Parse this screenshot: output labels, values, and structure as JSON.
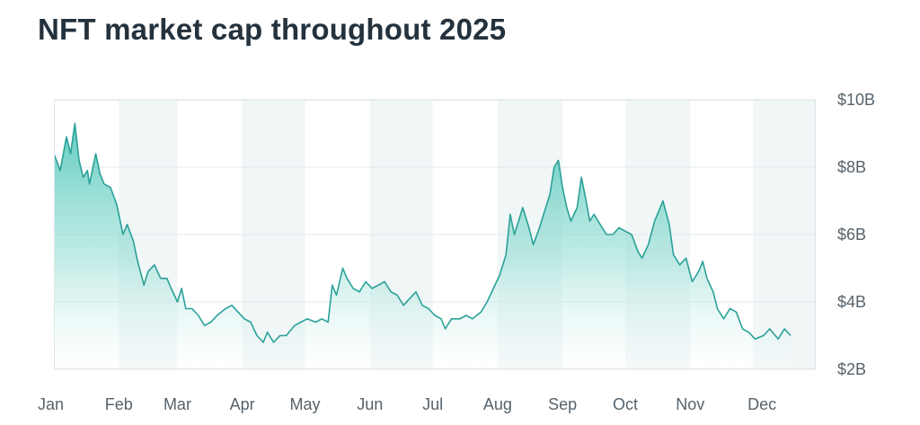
{
  "chart_data": {
    "type": "area",
    "title": "NFT market cap throughout 2025",
    "xlabel": "",
    "ylabel": "",
    "x_ticks": [
      "Jan",
      "Feb",
      "Mar",
      "Apr",
      "May",
      "Jun",
      "Jul",
      "Aug",
      "Sep",
      "Oct",
      "Nov",
      "Dec"
    ],
    "y_ticks": [
      "$2B",
      "$4B",
      "$6B",
      "$8B",
      "$10B"
    ],
    "y_tick_values": [
      2,
      4,
      6,
      8,
      10
    ],
    "ylim": [
      2,
      10
    ],
    "x_range": [
      "2025-01-01",
      "2025-12-31"
    ],
    "y_axis_position": "right",
    "grid": true,
    "alternating_month_bands": true,
    "colors": {
      "line": "#2aa198",
      "fill_top": "#4cc5b8",
      "fill_bottom": "#ffffff",
      "band": "#f1f6f7"
    },
    "series": [
      {
        "values": [
          [
            "2025-01-01",
            8.4
          ],
          [
            "2025-01-04",
            7.9
          ],
          [
            "2025-01-07",
            8.9
          ],
          [
            "2025-01-09",
            8.4
          ],
          [
            "2025-01-11",
            9.3
          ],
          [
            "2025-01-13",
            8.2
          ],
          [
            "2025-01-15",
            7.7
          ],
          [
            "2025-01-17",
            7.9
          ],
          [
            "2025-01-18",
            7.5
          ],
          [
            "2025-01-21",
            8.4
          ],
          [
            "2025-01-23",
            7.8
          ],
          [
            "2025-01-25",
            7.5
          ],
          [
            "2025-01-28",
            7.4
          ],
          [
            "2025-01-31",
            6.9
          ],
          [
            "2025-02-03",
            6.0
          ],
          [
            "2025-02-05",
            6.3
          ],
          [
            "2025-02-08",
            5.8
          ],
          [
            "2025-02-10",
            5.2
          ],
          [
            "2025-02-13",
            4.5
          ],
          [
            "2025-02-15",
            4.9
          ],
          [
            "2025-02-18",
            5.1
          ],
          [
            "2025-02-21",
            4.7
          ],
          [
            "2025-02-24",
            4.7
          ],
          [
            "2025-02-26",
            4.4
          ],
          [
            "2025-03-01",
            4.0
          ],
          [
            "2025-03-03",
            4.4
          ],
          [
            "2025-03-05",
            3.8
          ],
          [
            "2025-03-08",
            3.8
          ],
          [
            "2025-03-11",
            3.6
          ],
          [
            "2025-03-14",
            3.3
          ],
          [
            "2025-03-17",
            3.4
          ],
          [
            "2025-03-20",
            3.6
          ],
          [
            "2025-03-24",
            3.8
          ],
          [
            "2025-03-27",
            3.9
          ],
          [
            "2025-03-30",
            3.7
          ],
          [
            "2025-04-02",
            3.5
          ],
          [
            "2025-04-05",
            3.4
          ],
          [
            "2025-04-08",
            3.0
          ],
          [
            "2025-04-11",
            2.8
          ],
          [
            "2025-04-13",
            3.1
          ],
          [
            "2025-04-16",
            2.8
          ],
          [
            "2025-04-19",
            3.0
          ],
          [
            "2025-04-22",
            3.0
          ],
          [
            "2025-04-26",
            3.3
          ],
          [
            "2025-04-29",
            3.4
          ],
          [
            "2025-05-02",
            3.5
          ],
          [
            "2025-05-06",
            3.4
          ],
          [
            "2025-05-09",
            3.5
          ],
          [
            "2025-05-12",
            3.4
          ],
          [
            "2025-05-14",
            4.5
          ],
          [
            "2025-05-16",
            4.2
          ],
          [
            "2025-05-19",
            5.0
          ],
          [
            "2025-05-21",
            4.7
          ],
          [
            "2025-05-24",
            4.4
          ],
          [
            "2025-05-27",
            4.3
          ],
          [
            "2025-05-30",
            4.6
          ],
          [
            "2025-06-02",
            4.4
          ],
          [
            "2025-06-05",
            4.5
          ],
          [
            "2025-06-08",
            4.6
          ],
          [
            "2025-06-11",
            4.3
          ],
          [
            "2025-06-14",
            4.2
          ],
          [
            "2025-06-17",
            3.9
          ],
          [
            "2025-06-20",
            4.1
          ],
          [
            "2025-06-23",
            4.3
          ],
          [
            "2025-06-26",
            3.9
          ],
          [
            "2025-06-29",
            3.8
          ],
          [
            "2025-07-02",
            3.6
          ],
          [
            "2025-07-05",
            3.5
          ],
          [
            "2025-07-07",
            3.2
          ],
          [
            "2025-07-10",
            3.5
          ],
          [
            "2025-07-14",
            3.5
          ],
          [
            "2025-07-17",
            3.6
          ],
          [
            "2025-07-20",
            3.5
          ],
          [
            "2025-07-24",
            3.7
          ],
          [
            "2025-07-27",
            4.0
          ],
          [
            "2025-07-30",
            4.4
          ],
          [
            "2025-08-02",
            4.8
          ],
          [
            "2025-08-05",
            5.4
          ],
          [
            "2025-08-07",
            6.6
          ],
          [
            "2025-08-09",
            6.0
          ],
          [
            "2025-08-11",
            6.4
          ],
          [
            "2025-08-13",
            6.8
          ],
          [
            "2025-08-16",
            6.2
          ],
          [
            "2025-08-18",
            5.7
          ],
          [
            "2025-08-21",
            6.2
          ],
          [
            "2025-08-23",
            6.6
          ],
          [
            "2025-08-26",
            7.2
          ],
          [
            "2025-08-28",
            8.0
          ],
          [
            "2025-08-30",
            8.2
          ],
          [
            "2025-09-01",
            7.4
          ],
          [
            "2025-09-03",
            6.8
          ],
          [
            "2025-09-05",
            6.4
          ],
          [
            "2025-09-08",
            6.8
          ],
          [
            "2025-09-10",
            7.7
          ],
          [
            "2025-09-12",
            7.1
          ],
          [
            "2025-09-14",
            6.4
          ],
          [
            "2025-09-16",
            6.6
          ],
          [
            "2025-09-19",
            6.3
          ],
          [
            "2025-09-22",
            6.0
          ],
          [
            "2025-09-25",
            6.0
          ],
          [
            "2025-09-28",
            6.2
          ],
          [
            "2025-10-01",
            6.1
          ],
          [
            "2025-10-04",
            6.0
          ],
          [
            "2025-10-07",
            5.5
          ],
          [
            "2025-10-09",
            5.3
          ],
          [
            "2025-10-12",
            5.7
          ],
          [
            "2025-10-15",
            6.4
          ],
          [
            "2025-10-17",
            6.7
          ],
          [
            "2025-10-19",
            7.0
          ],
          [
            "2025-10-22",
            6.3
          ],
          [
            "2025-10-24",
            5.4
          ],
          [
            "2025-10-27",
            5.1
          ],
          [
            "2025-10-30",
            5.3
          ],
          [
            "2025-11-02",
            4.6
          ],
          [
            "2025-11-05",
            4.9
          ],
          [
            "2025-11-07",
            5.2
          ],
          [
            "2025-11-09",
            4.7
          ],
          [
            "2025-11-12",
            4.3
          ],
          [
            "2025-11-14",
            3.8
          ],
          [
            "2025-11-17",
            3.5
          ],
          [
            "2025-11-20",
            3.8
          ],
          [
            "2025-11-23",
            3.7
          ],
          [
            "2025-11-26",
            3.2
          ],
          [
            "2025-11-29",
            3.1
          ],
          [
            "2025-12-02",
            2.9
          ],
          [
            "2025-12-06",
            3.0
          ],
          [
            "2025-12-09",
            3.2
          ],
          [
            "2025-12-13",
            2.9
          ],
          [
            "2025-12-16",
            3.2
          ],
          [
            "2025-12-19",
            3.0
          ]
        ]
      }
    ]
  }
}
